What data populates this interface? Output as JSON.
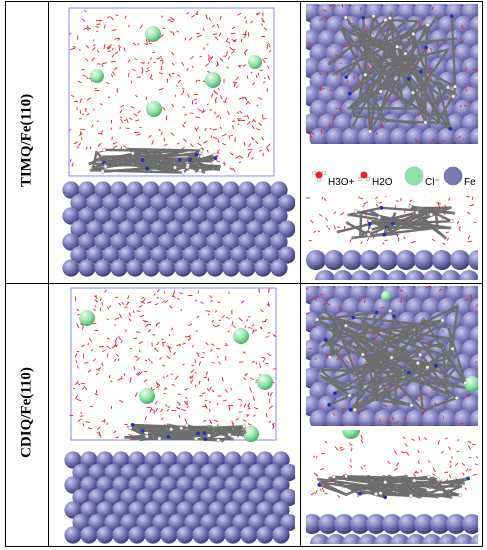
{
  "rows": [
    {
      "label": "TIMQ/Fe(110)"
    },
    {
      "label": "CDIQ/Fe(110)"
    }
  ],
  "legend": {
    "hydronium": "H3O+",
    "water": "H2O",
    "chloride": "Cl⁻",
    "iron": "Fe"
  },
  "colors": {
    "iron": "#7b78b8",
    "chloride": "#8fe3a8",
    "water": "#e8202a",
    "carbon": "#6e6e6e",
    "nitrogen": "#1f2bd6",
    "box": "#6a6aff"
  }
}
